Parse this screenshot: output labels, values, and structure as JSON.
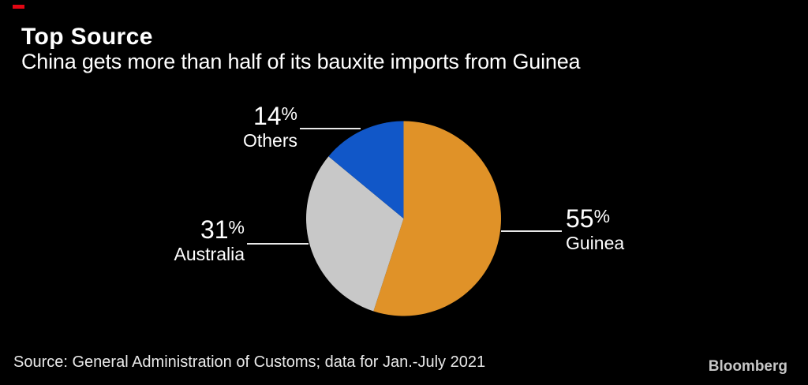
{
  "header": {
    "title": "Top Source",
    "subtitle": "China gets more than half of its bauxite imports from Guinea"
  },
  "chart_data": {
    "type": "pie",
    "title": "Top Source",
    "subtitle": "China gets more than half of its bauxite imports from Guinea",
    "unit": "percent",
    "total": 100,
    "start_angle_deg": 0,
    "direction": "clockwise",
    "legend_position": "external-callout-labels",
    "slices": [
      {
        "label": "Guinea",
        "value": 55,
        "color": "#E09228"
      },
      {
        "label": "Australia",
        "value": 31,
        "color": "#C8C8C8"
      },
      {
        "label": "Others",
        "value": 14,
        "color": "#1157C8"
      }
    ]
  },
  "callouts": {
    "others": {
      "value": "14",
      "unit": "%",
      "label": "Others"
    },
    "australia": {
      "value": "31",
      "unit": "%",
      "label": "Australia"
    },
    "guinea": {
      "value": "55",
      "unit": "%",
      "label": "Guinea"
    }
  },
  "footer": {
    "source": "Source: General Administration of Customs; data for Jan.-July 2021",
    "brand": "Bloomberg"
  },
  "colors": {
    "background": "#000000",
    "text": "#ffffff",
    "leader_line": "#e8e8e8",
    "source_text": "#e9e9e9",
    "brand_text": "#c6c6c6",
    "brand_red": "#e20613"
  }
}
